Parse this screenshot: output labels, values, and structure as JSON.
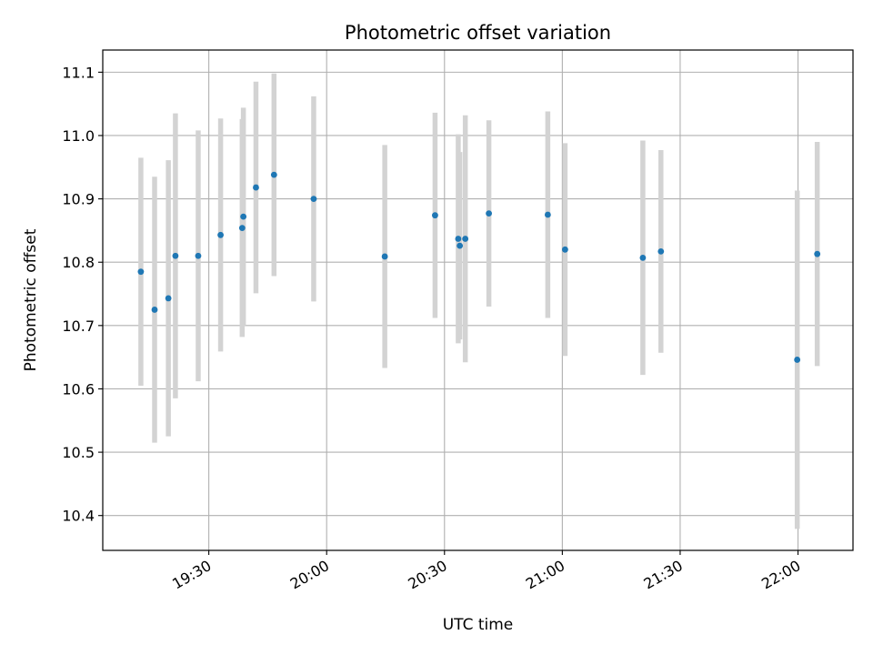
{
  "chart_data": {
    "type": "scatter",
    "title": "Photometric offset variation",
    "xlabel": "UTC time",
    "ylabel": "Photometric offset",
    "grid": true,
    "xlim": [
      "19:03",
      "22:14"
    ],
    "ylim": [
      10.345,
      11.135
    ],
    "yticks": [
      10.4,
      10.5,
      10.6,
      10.7,
      10.8,
      10.9,
      11.0,
      11.1
    ],
    "xticks": [
      "19:30",
      "20:00",
      "20:30",
      "21:00",
      "21:30",
      "22:00"
    ],
    "colors": {
      "points": "#1f77b4",
      "errorbars": "#d3d3d3",
      "grid": "#b0b0b0"
    },
    "points": [
      {
        "x": "19:12.7",
        "y": 10.785,
        "yerr": 0.18
      },
      {
        "x": "19:16.2",
        "y": 10.725,
        "yerr": 0.21
      },
      {
        "x": "19:19.7",
        "y": 10.743,
        "yerr": 0.218
      },
      {
        "x": "19:21.5",
        "y": 10.81,
        "yerr": 0.225
      },
      {
        "x": "19:27.3",
        "y": 10.81,
        "yerr": 0.198
      },
      {
        "x": "19:33.0",
        "y": 10.843,
        "yerr": 0.184
      },
      {
        "x": "19:38.5",
        "y": 10.854,
        "yerr": 0.172
      },
      {
        "x": "19:38.8",
        "y": 10.872,
        "yerr": 0.172
      },
      {
        "x": "19:42.0",
        "y": 10.918,
        "yerr": 0.167
      },
      {
        "x": "19:46.6",
        "y": 10.938,
        "yerr": 0.16
      },
      {
        "x": "19:56.7",
        "y": 10.9,
        "yerr": 0.162
      },
      {
        "x": "20:14.8",
        "y": 10.809,
        "yerr": 0.176
      },
      {
        "x": "20:27.6",
        "y": 10.874,
        "yerr": 0.162
      },
      {
        "x": "20:33.5",
        "y": 10.837,
        "yerr": 0.165
      },
      {
        "x": "20:33.9",
        "y": 10.826,
        "yerr": 0.148
      },
      {
        "x": "20:35.3",
        "y": 10.837,
        "yerr": 0.195
      },
      {
        "x": "20:41.3",
        "y": 10.877,
        "yerr": 0.147
      },
      {
        "x": "20:56.3",
        "y": 10.875,
        "yerr": 0.163
      },
      {
        "x": "21:00.7",
        "y": 10.82,
        "yerr": 0.168
      },
      {
        "x": "21:20.5",
        "y": 10.807,
        "yerr": 0.185
      },
      {
        "x": "21:25.1",
        "y": 10.817,
        "yerr": 0.16
      },
      {
        "x": "21:59.8",
        "y": 10.646,
        "yerr": 0.267
      },
      {
        "x": "22:04.9",
        "y": 10.813,
        "yerr": 0.177
      }
    ]
  }
}
